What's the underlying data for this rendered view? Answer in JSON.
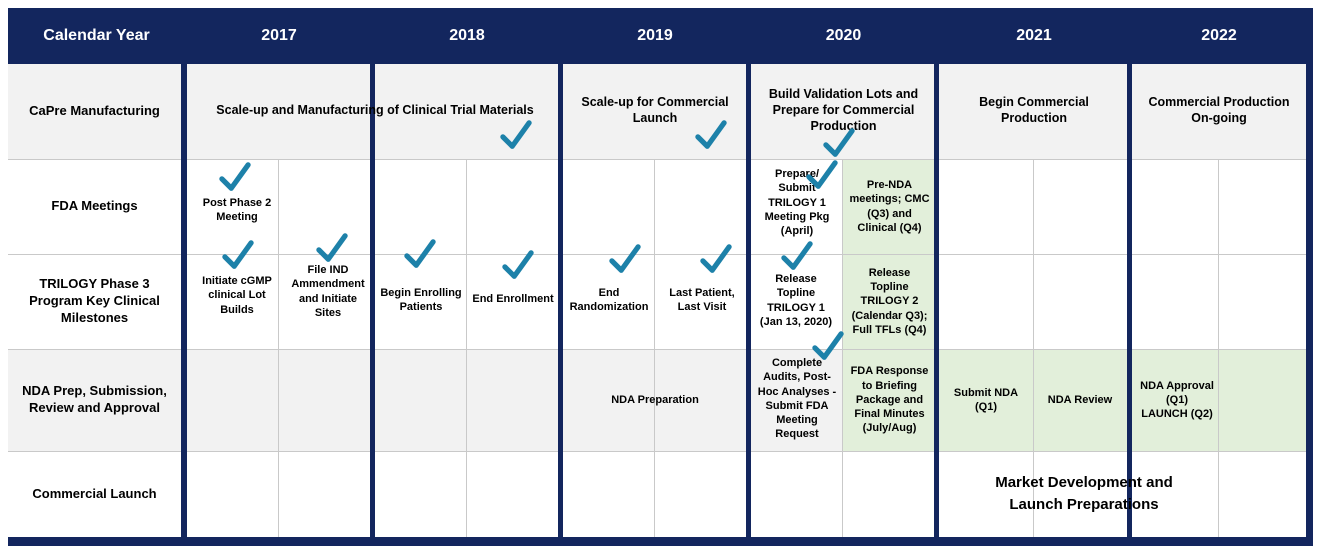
{
  "colors": {
    "navy": "#13265e",
    "teal": "#1d81a9",
    "green": "#e2efda",
    "row_gray": "#f2f2f2",
    "grid": "#c9c9c9"
  },
  "header": {
    "label": "Calendar Year",
    "years": [
      "2017",
      "2018",
      "2019",
      "2020",
      "2021",
      "2022"
    ]
  },
  "row_labels": {
    "manufacturing": "CaPre Manufacturing",
    "fda": "FDA Meetings",
    "trilogy": "TRILOGY Phase 3\nProgram Key Clinical\nMilestones",
    "nda": "NDA Prep, Submission,\nReview and Approval",
    "launch": "Commercial Launch"
  },
  "cells": {
    "scaleup_ct": "Scale-up and Manufacturing of Clinical Trial Materials",
    "scaleup_cl": "Scale-up for Commercial\nLaunch",
    "build_validation": "Build Validation Lots and\nPrepare for Commercial\nProduction",
    "begin_cp": "Begin Commercial\nProduction",
    "cp_ongoing": "Commercial Production\nOn-going",
    "post_phase2": "Post Phase 2\nMeeting",
    "prepare_submit": "Prepare/\nSubmit\nTRILOGY 1\nMeeting Pkg\n(April)",
    "pre_nda": "Pre-NDA\nmeetings; CMC\n(Q3) and\nClinical (Q4)",
    "initiate_cgmp": "Initiate cGMP\nclinical Lot\nBuilds",
    "file_ind": "File IND\nAmmendment\nand Initiate\nSites",
    "begin_enrolling": "Begin Enrolling\nPatients",
    "end_enrollment": "End Enrollment",
    "end_randomization": "End\nRandomization",
    "last_patient": "Last Patient,\nLast Visit",
    "release_t1": "Release\nTopline\nTRILOGY 1\n(Jan 13, 2020)",
    "release_t2": "Release\nTopline\nTRILOGY 2\n(Calendar Q3);\nFull TFLs (Q4)",
    "nda_preparation": "NDA Preparation",
    "complete_audits": "Complete\nAudits, Post-\nHoc Analyses -\nSubmit FDA\nMeeting\nRequest",
    "fda_response": "FDA Response\nto Briefing\nPackage and\nFinal Minutes\n(July/Aug)",
    "submit_nda": "Submit NDA\n(Q1)",
    "nda_review": "NDA Review",
    "nda_approval": "NDA Approval\n(Q1)\nLAUNCH (Q2)",
    "market_dev": "Market Development and\nLaunch Preparations"
  }
}
